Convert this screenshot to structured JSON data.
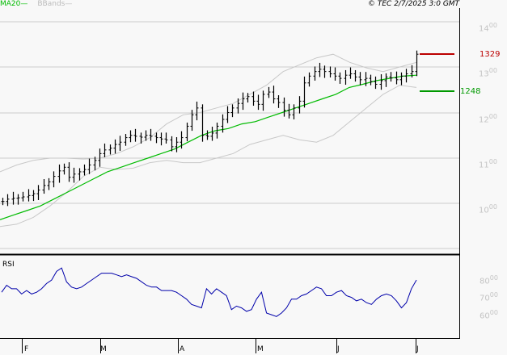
{
  "legend": {
    "ma_label": "MA20",
    "ma_dash": "—",
    "bb_label": "BBands",
    "bb_dash": "—"
  },
  "copyright": "© TEC 2/7/2025 3:0 GMT",
  "price_axis": [
    "1400",
    "1300",
    "1200",
    "1100",
    "1000"
  ],
  "rsi_axis": [
    "8000",
    "7000",
    "6000"
  ],
  "rsi_axis_display": [
    {
      "main": "80",
      "sup": "00"
    },
    {
      "main": "70",
      "sup": "00"
    },
    {
      "main": "60",
      "sup": "00"
    }
  ],
  "price_axis_display": [
    {
      "main": "14",
      "sup": "00"
    },
    {
      "main": "13",
      "sup": "00"
    },
    {
      "main": "12",
      "sup": "00"
    },
    {
      "main": "11",
      "sup": "00"
    },
    {
      "main": "10",
      "sup": "00"
    }
  ],
  "levels": {
    "resistance": "1329",
    "support": "1248",
    "resistance_color": "#bb0000",
    "support_color": "#009900"
  },
  "rsi_title": "RSI",
  "months": [
    "F",
    "M",
    "A",
    "M",
    "J",
    "J"
  ],
  "colors": {
    "ma": "#00bb00",
    "bbands": "#c8c8c8",
    "rsi": "#0000aa",
    "bars": "#000000",
    "grid": "#cccccc",
    "background": "#f8f8f8"
  },
  "chart_data": {
    "type": "line",
    "title": "",
    "charts": [
      {
        "panel": "price",
        "type": "ohlc",
        "xlabel": "",
        "ylabel": "",
        "ylim": [
          950,
          1450
        ],
        "x_ticks": [
          "F",
          "M",
          "A",
          "M",
          "J",
          "J"
        ],
        "y_ticks": [
          1000,
          1100,
          1200,
          1300,
          1400
        ],
        "grid": true,
        "legend": [
          "MA20",
          "BBands"
        ],
        "series": [
          {
            "name": "Close (approx)",
            "values": [
              1005,
              1010,
              1012,
              1013,
              1015,
              1018,
              1022,
              1030,
              1040,
              1048,
              1060,
              1072,
              1080,
              1058,
              1065,
              1070,
              1075,
              1085,
              1095,
              1110,
              1118,
              1122,
              1130,
              1135,
              1145,
              1150,
              1148,
              1146,
              1150,
              1148,
              1145,
              1142,
              1140,
              1125,
              1135,
              1145,
              1170,
              1195,
              1210,
              1150,
              1148,
              1155,
              1170,
              1185,
              1200,
              1210,
              1220,
              1230,
              1235,
              1225,
              1218,
              1240,
              1245,
              1230,
              1222,
              1205,
              1195,
              1210,
              1225,
              1265,
              1280,
              1290,
              1295,
              1290,
              1285,
              1280,
              1275,
              1282,
              1285,
              1278,
              1272,
              1275,
              1268,
              1262,
              1270,
              1278,
              1276,
              1272,
              1280,
              1285,
              1290,
              1328
            ]
          },
          {
            "name": "MA20 (approx)",
            "values": [
              965,
              975,
              985,
              995,
              1010,
              1025,
              1040,
              1055,
              1070,
              1080,
              1090,
              1100,
              1110,
              1120,
              1135,
              1150,
              1160,
              1165,
              1175,
              1180,
              1190,
              1200,
              1210,
              1220,
              1230,
              1240,
              1255,
              1262,
              1270,
              1275,
              1280,
              1282
            ]
          },
          {
            "name": "BBands upper (approx)",
            "values": [
              1070,
              1085,
              1095,
              1100,
              1100,
              1098,
              1100,
              1110,
              1125,
              1145,
              1175,
              1195,
              1200,
              1210,
              1220,
              1240,
              1260,
              1290,
              1305,
              1320,
              1328,
              1310,
              1298,
              1290,
              1300,
              1310
            ]
          },
          {
            "name": "BBands lower (approx)",
            "values": [
              950,
              955,
              970,
              995,
              1025,
              1060,
              1080,
              1075,
              1078,
              1090,
              1095,
              1090,
              1090,
              1100,
              1110,
              1130,
              1140,
              1150,
              1140,
              1135,
              1150,
              1180,
              1210,
              1240,
              1260,
              1255
            ]
          }
        ],
        "annotations": [
          {
            "label": "1329",
            "type": "resistance"
          },
          {
            "label": "1248",
            "type": "support"
          }
        ]
      },
      {
        "panel": "rsi",
        "type": "line",
        "title": "RSI",
        "ylim": [
          40,
          90
        ],
        "y_ticks": [
          60,
          70,
          80
        ],
        "series": [
          {
            "name": "RSI (approx)",
            "values": [
              72,
              76,
              74,
              74,
              71,
              73,
              71,
              72,
              74,
              77,
              79,
              84,
              86,
              78,
              75,
              74,
              75,
              77,
              79,
              81,
              83,
              83,
              83,
              82,
              81,
              82,
              81,
              80,
              78,
              76,
              75,
              75,
              73,
              73,
              73,
              72,
              70,
              68,
              65,
              64,
              63,
              74,
              71,
              74,
              72,
              70,
              62,
              64,
              63,
              61,
              62,
              68,
              72,
              60,
              59,
              58,
              60,
              63,
              68,
              68,
              70,
              71,
              73,
              75,
              74,
              70,
              70,
              72,
              73,
              70,
              69,
              67,
              68,
              66,
              65,
              68,
              70,
              71,
              70,
              67,
              63,
              66,
              74,
              79
            ]
          }
        ]
      }
    ]
  }
}
